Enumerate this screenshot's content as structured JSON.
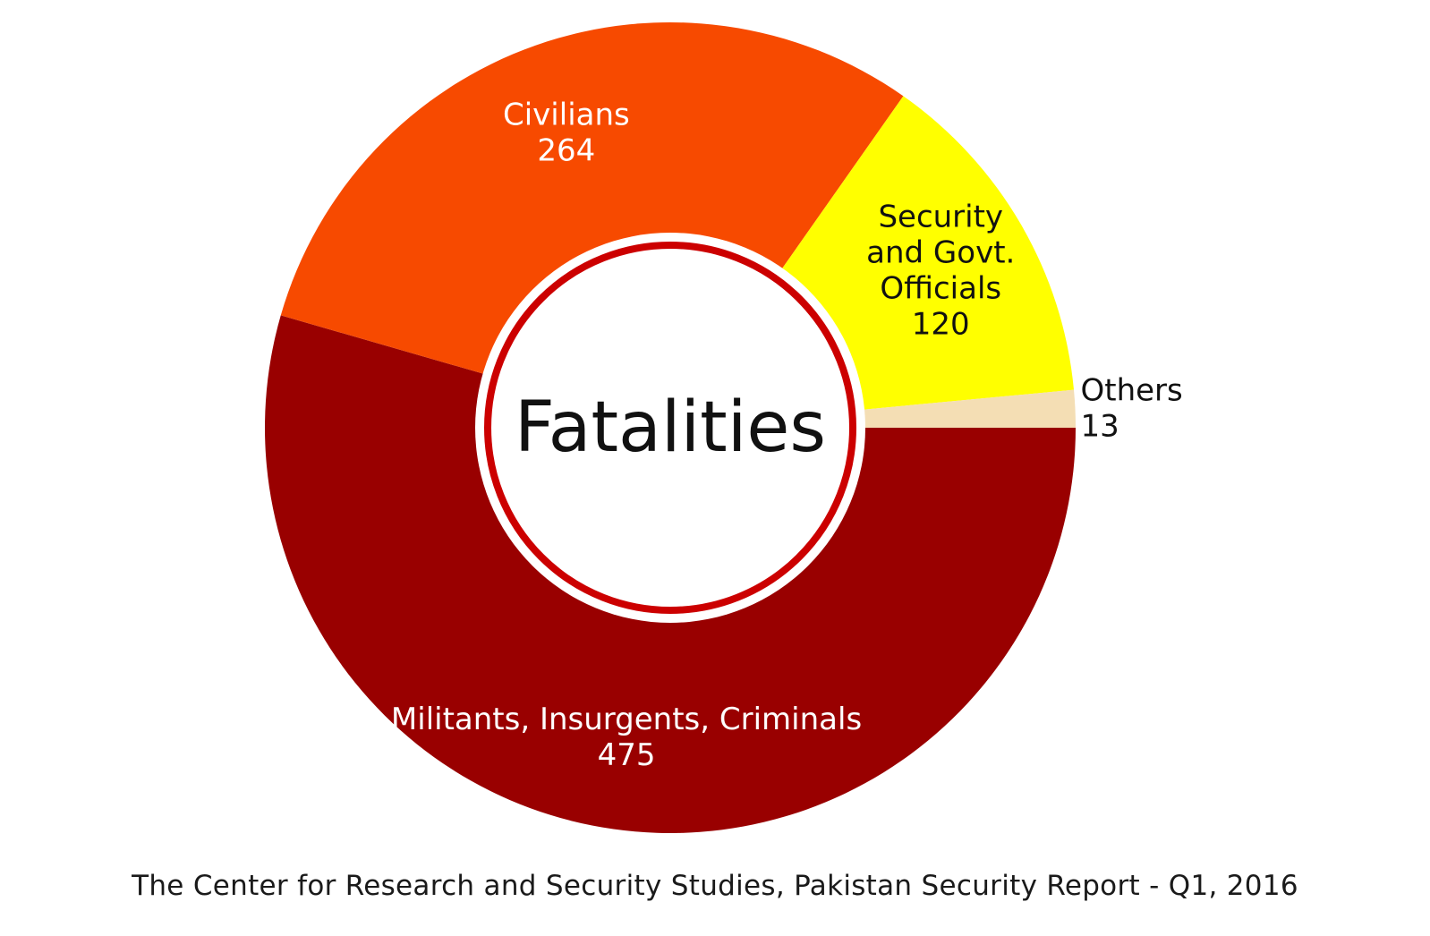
{
  "chart_data": {
    "type": "pie",
    "style": "donut",
    "center_label": "Fatalities",
    "slices": [
      {
        "name": "Militants, Insurgents, Criminals",
        "lines": [
          "Militants, Insurgents, Criminals"
        ],
        "value": 475,
        "color": "#990000",
        "label_color": "#ffffff"
      },
      {
        "name": "Civilians",
        "lines": [
          "Civilians"
        ],
        "value": 264,
        "color": "#f74a00",
        "label_color": "#ffffff"
      },
      {
        "name": "Security and Govt. Officials",
        "lines": [
          "Security",
          "and Govt.",
          "Officials"
        ],
        "value": 120,
        "color": "#ffff00",
        "label_color": "#111111"
      },
      {
        "name": "Others",
        "lines": [
          "Others"
        ],
        "value": 13,
        "color": "#f4deb4",
        "label_color": "#111111",
        "label_outside": true
      }
    ],
    "inner_ring_color": "#cc0000"
  },
  "source": "The Center for Research and Security Studies, Pakistan Security Report - Q1, 2016"
}
